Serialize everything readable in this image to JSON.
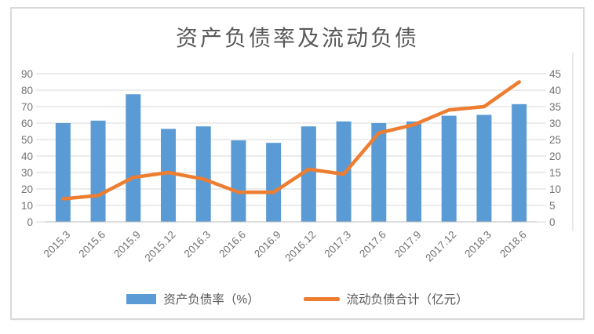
{
  "chart_data": {
    "type": "combo",
    "title": "资产负债率及流动负债",
    "categories": [
      "2015.3",
      "2015.6",
      "2015.9",
      "2015.12",
      "2016.3",
      "2016.6",
      "2016.9",
      "2016.12",
      "2017.3",
      "2017.6",
      "2017.9",
      "2017.12",
      "2018.3",
      "2018.6"
    ],
    "series": [
      {
        "name": "资产负债率（%）",
        "type": "bar",
        "axis": "left",
        "color": "#5B9BD5",
        "values": [
          60,
          61.5,
          77.5,
          56.5,
          58,
          49.5,
          48,
          58,
          61,
          60,
          61,
          64.5,
          65,
          71.5
        ]
      },
      {
        "name": "流动负债合计（亿元）",
        "type": "line",
        "axis": "right",
        "color": "#ED7D31",
        "values": [
          7,
          8,
          13.5,
          15,
          13,
          9,
          9,
          16,
          14.5,
          27,
          29.5,
          34,
          35,
          42.5
        ]
      }
    ],
    "left_axis": {
      "min": 0,
      "max": 90,
      "step": 10,
      "ticks": [
        0,
        10,
        20,
        30,
        40,
        50,
        60,
        70,
        80,
        90
      ]
    },
    "right_axis": {
      "min": 0,
      "max": 45,
      "step": 5,
      "ticks": [
        0,
        5,
        10,
        15,
        20,
        25,
        30,
        35,
        40,
        45
      ]
    },
    "grid": true,
    "legend_position": "bottom",
    "styles": {
      "grid_color": "#d9d9d9",
      "axis_line_color": "#bfbfbf",
      "tick_label_color": "#737373",
      "title_color": "#595959",
      "legend_text_color": "#595959",
      "background": "#ffffff",
      "border_color": "#d9d9d9"
    }
  }
}
